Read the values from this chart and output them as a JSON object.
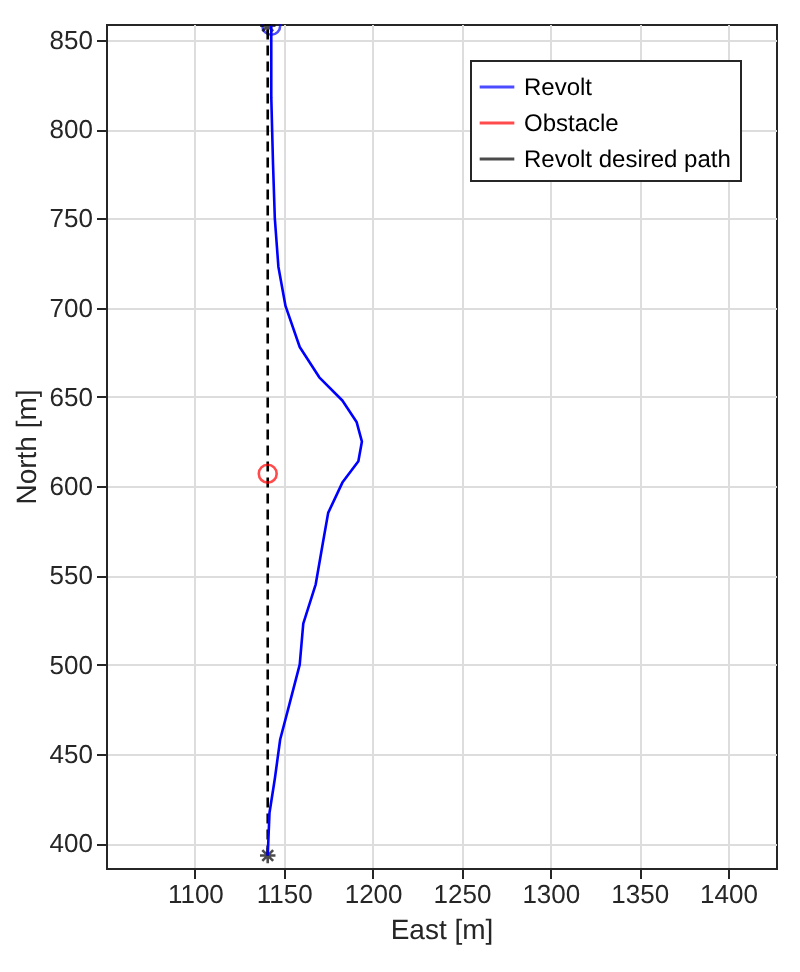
{
  "chart_data": {
    "type": "line",
    "xlabel": "East [m]",
    "ylabel": "North [m]",
    "xlim": [
      1050,
      1427
    ],
    "ylim": [
      386,
      859
    ],
    "xticks": [
      1100,
      1150,
      1200,
      1250,
      1300,
      1350,
      1400
    ],
    "yticks": [
      400,
      450,
      500,
      550,
      600,
      650,
      700,
      750,
      800,
      850
    ],
    "grid": true,
    "legend": "top right",
    "series": [
      {
        "name": "Revolt",
        "color": "#0000ff",
        "line_style": "solid",
        "x": [
          1141,
          1142,
          1145,
          1148,
          1153,
          1159,
          1161,
          1168,
          1172,
          1175,
          1183,
          1192,
          1194,
          1191,
          1183,
          1170,
          1159,
          1151,
          1147,
          1145,
          1144,
          1143,
          1143
        ],
        "values": [
          393,
          417,
          436,
          458,
          477,
          500,
          523,
          545,
          568,
          585,
          602,
          614,
          625,
          636,
          648,
          661,
          678,
          701,
          723,
          750,
          780,
          818,
          858
        ]
      },
      {
        "name": "Obstacle",
        "type": "scatter",
        "color": "#ff0000",
        "marker": "circle",
        "x": [
          1141
        ],
        "values": [
          607
        ]
      },
      {
        "name": "Revolt desired path",
        "color": "#000000",
        "line_style": "dashed",
        "marker": "cross",
        "x": [
          1141,
          1141
        ],
        "values": [
          393,
          858
        ]
      },
      {
        "type": "scatter",
        "color": "#0000ff",
        "marker": "circle",
        "x": [
          1143
        ],
        "values": [
          858
        ]
      }
    ]
  }
}
